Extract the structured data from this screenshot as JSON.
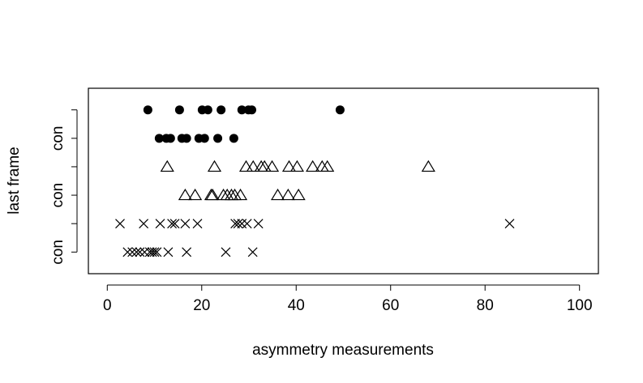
{
  "chart_data": {
    "type": "scatter",
    "x_label": "asymmetry measurements",
    "y_label": "last frame",
    "xlim": [
      -4,
      104
    ],
    "xticks": [
      0,
      20,
      40,
      60,
      80,
      100
    ],
    "ylim": [
      0.24,
      6.76
    ],
    "yticks": [
      {
        "value": 1,
        "label": "con"
      },
      {
        "value": 2,
        "label": null
      },
      {
        "value": 3,
        "label": "con"
      },
      {
        "value": 4,
        "label": null
      },
      {
        "value": 5,
        "label": "con"
      },
      {
        "value": 6,
        "label": null
      }
    ],
    "color": "#000000",
    "series": [
      {
        "marker": "cross",
        "x": [
          4.3,
          5.3,
          6.2,
          6.9,
          7.9,
          9.0,
          9.5,
          10.0,
          10.5,
          12.9,
          16.8,
          25.1,
          30.8
        ],
        "y": [
          1,
          1,
          1,
          1,
          1,
          1,
          1,
          1,
          1,
          1,
          1,
          1,
          1
        ]
      },
      {
        "marker": "cross",
        "x": [
          2.7,
          7.7,
          11.2,
          13.7,
          14.3,
          16.5,
          19.1,
          27.1,
          27.7,
          28.5,
          29.6,
          32.0,
          85.2
        ],
        "y": [
          2,
          2,
          2,
          2,
          2,
          2,
          2,
          2,
          2,
          2,
          2,
          2,
          2
        ]
      },
      {
        "marker": "triangle",
        "x": [
          16.5,
          18.6,
          22.0,
          22.3,
          24.6,
          25.4,
          26.3,
          27.0,
          28.2,
          36.1,
          38.3,
          40.5
        ],
        "y": [
          3,
          3,
          3,
          3,
          3,
          3,
          3,
          3,
          3,
          3,
          3,
          3
        ]
      },
      {
        "marker": "triangle",
        "x": [
          12.7,
          22.7,
          29.4,
          30.9,
          32.6,
          33.3,
          34.9,
          38.5,
          40.2,
          43.5,
          45.5,
          46.6,
          68.0
        ],
        "y": [
          4,
          4,
          4,
          4,
          4,
          4,
          4,
          4,
          4,
          4,
          4,
          4,
          4
        ]
      },
      {
        "marker": "circle",
        "x": [
          11.0,
          12.5,
          13.4,
          15.8,
          16.8,
          19.4,
          20.6,
          23.4,
          26.8
        ],
        "y": [
          5,
          5,
          5,
          5,
          5,
          5,
          5,
          5,
          5
        ]
      },
      {
        "marker": "circle",
        "x": [
          8.6,
          15.3,
          20.1,
          21.3,
          24.1,
          28.5,
          29.9,
          30.6,
          49.3
        ],
        "y": [
          6,
          6,
          6,
          6,
          6,
          6,
          6,
          6,
          6
        ]
      }
    ]
  }
}
